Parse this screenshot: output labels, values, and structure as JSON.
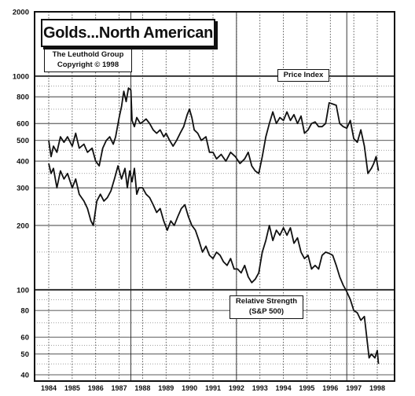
{
  "chart_data": {
    "type": "line",
    "title": "Golds...North American",
    "source_lines": [
      "The Leuthold Group",
      "Copyright © 1998"
    ],
    "y_scale": "log",
    "ylim": [
      40,
      2000
    ],
    "y_ticks": [
      2000,
      1000,
      800,
      600,
      500,
      400,
      300,
      200,
      100,
      80,
      60,
      50,
      40
    ],
    "xlim": [
      1984,
      1998
    ],
    "x_ticks": [
      1984,
      1985,
      1986,
      1987,
      1988,
      1989,
      1990,
      1991,
      1992,
      1993,
      1994,
      1995,
      1996,
      1997,
      1998
    ],
    "grid": true,
    "series": [
      {
        "name": "Price Index",
        "label_lines": [
          "Price Index"
        ],
        "points": [
          [
            1984.0,
            500
          ],
          [
            1984.1,
            420
          ],
          [
            1984.2,
            470
          ],
          [
            1984.35,
            440
          ],
          [
            1984.5,
            520
          ],
          [
            1984.65,
            490
          ],
          [
            1984.8,
            520
          ],
          [
            1985.0,
            470
          ],
          [
            1985.15,
            540
          ],
          [
            1985.3,
            460
          ],
          [
            1985.5,
            480
          ],
          [
            1985.65,
            440
          ],
          [
            1985.85,
            460
          ],
          [
            1986.0,
            400
          ],
          [
            1986.15,
            380
          ],
          [
            1986.3,
            460
          ],
          [
            1986.45,
            500
          ],
          [
            1986.6,
            520
          ],
          [
            1986.75,
            480
          ],
          [
            1986.85,
            520
          ],
          [
            1987.0,
            640
          ],
          [
            1987.1,
            720
          ],
          [
            1987.2,
            850
          ],
          [
            1987.3,
            760
          ],
          [
            1987.4,
            880
          ],
          [
            1987.5,
            860
          ],
          [
            1987.55,
            620
          ],
          [
            1987.65,
            580
          ],
          [
            1987.75,
            640
          ],
          [
            1987.9,
            600
          ],
          [
            1988.0,
            610
          ],
          [
            1988.15,
            630
          ],
          [
            1988.3,
            600
          ],
          [
            1988.45,
            560
          ],
          [
            1988.6,
            540
          ],
          [
            1988.75,
            560
          ],
          [
            1988.9,
            520
          ],
          [
            1989.0,
            540
          ],
          [
            1989.15,
            500
          ],
          [
            1989.3,
            470
          ],
          [
            1989.45,
            500
          ],
          [
            1989.6,
            540
          ],
          [
            1989.75,
            580
          ],
          [
            1989.9,
            660
          ],
          [
            1990.0,
            700
          ],
          [
            1990.1,
            640
          ],
          [
            1990.2,
            560
          ],
          [
            1990.35,
            540
          ],
          [
            1990.5,
            500
          ],
          [
            1990.7,
            520
          ],
          [
            1990.85,
            440
          ],
          [
            1991.0,
            440
          ],
          [
            1991.15,
            410
          ],
          [
            1991.35,
            430
          ],
          [
            1991.55,
            400
          ],
          [
            1991.75,
            440
          ],
          [
            1991.95,
            420
          ],
          [
            1992.15,
            390
          ],
          [
            1992.35,
            410
          ],
          [
            1992.5,
            440
          ],
          [
            1992.65,
            380
          ],
          [
            1992.8,
            360
          ],
          [
            1992.95,
            350
          ],
          [
            1993.1,
            420
          ],
          [
            1993.25,
            520
          ],
          [
            1993.4,
            600
          ],
          [
            1993.55,
            680
          ],
          [
            1993.7,
            600
          ],
          [
            1993.85,
            640
          ],
          [
            1994.0,
            620
          ],
          [
            1994.15,
            680
          ],
          [
            1994.3,
            620
          ],
          [
            1994.45,
            660
          ],
          [
            1994.6,
            600
          ],
          [
            1994.75,
            650
          ],
          [
            1994.9,
            540
          ],
          [
            1995.05,
            560
          ],
          [
            1995.2,
            600
          ],
          [
            1995.35,
            610
          ],
          [
            1995.5,
            580
          ],
          [
            1995.65,
            580
          ],
          [
            1995.8,
            600
          ],
          [
            1995.95,
            750
          ],
          [
            1996.1,
            740
          ],
          [
            1996.25,
            730
          ],
          [
            1996.4,
            600
          ],
          [
            1996.55,
            580
          ],
          [
            1996.7,
            570
          ],
          [
            1996.85,
            620
          ],
          [
            1997.0,
            510
          ],
          [
            1997.15,
            490
          ],
          [
            1997.3,
            560
          ],
          [
            1997.45,
            470
          ],
          [
            1997.6,
            350
          ],
          [
            1997.75,
            370
          ],
          [
            1997.85,
            390
          ],
          [
            1997.95,
            420
          ],
          [
            1998.05,
            360
          ]
        ]
      },
      {
        "name": "Relative Strength (S&P 500)",
        "label_lines": [
          "Relative Strength",
          "(S&P 500)"
        ],
        "points": [
          [
            1984.0,
            390
          ],
          [
            1984.1,
            350
          ],
          [
            1984.2,
            370
          ],
          [
            1984.35,
            300
          ],
          [
            1984.5,
            360
          ],
          [
            1984.65,
            330
          ],
          [
            1984.8,
            350
          ],
          [
            1985.0,
            300
          ],
          [
            1985.15,
            330
          ],
          [
            1985.3,
            280
          ],
          [
            1985.5,
            260
          ],
          [
            1985.65,
            240
          ],
          [
            1985.8,
            210
          ],
          [
            1985.9,
            200
          ],
          [
            1986.05,
            260
          ],
          [
            1986.2,
            280
          ],
          [
            1986.35,
            260
          ],
          [
            1986.5,
            270
          ],
          [
            1986.65,
            290
          ],
          [
            1986.8,
            330
          ],
          [
            1986.95,
            380
          ],
          [
            1987.1,
            330
          ],
          [
            1987.25,
            370
          ],
          [
            1987.35,
            300
          ],
          [
            1987.45,
            360
          ],
          [
            1987.55,
            320
          ],
          [
            1987.65,
            370
          ],
          [
            1987.75,
            280
          ],
          [
            1987.85,
            300
          ],
          [
            1988.0,
            300
          ],
          [
            1988.15,
            280
          ],
          [
            1988.3,
            270
          ],
          [
            1988.45,
            250
          ],
          [
            1988.6,
            230
          ],
          [
            1988.75,
            240
          ],
          [
            1988.9,
            210
          ],
          [
            1989.05,
            190
          ],
          [
            1989.2,
            210
          ],
          [
            1989.35,
            200
          ],
          [
            1989.5,
            220
          ],
          [
            1989.65,
            240
          ],
          [
            1989.8,
            250
          ],
          [
            1989.95,
            220
          ],
          [
            1990.1,
            200
          ],
          [
            1990.25,
            190
          ],
          [
            1990.4,
            170
          ],
          [
            1990.55,
            150
          ],
          [
            1990.7,
            160
          ],
          [
            1990.85,
            145
          ],
          [
            1991.0,
            140
          ],
          [
            1991.15,
            150
          ],
          [
            1991.3,
            145
          ],
          [
            1991.45,
            135
          ],
          [
            1991.6,
            130
          ],
          [
            1991.75,
            140
          ],
          [
            1991.9,
            125
          ],
          [
            1992.05,
            125
          ],
          [
            1992.2,
            120
          ],
          [
            1992.35,
            130
          ],
          [
            1992.5,
            115
          ],
          [
            1992.65,
            108
          ],
          [
            1992.8,
            112
          ],
          [
            1992.95,
            120
          ],
          [
            1993.1,
            150
          ],
          [
            1993.25,
            170
          ],
          [
            1993.4,
            200
          ],
          [
            1993.55,
            170
          ],
          [
            1993.7,
            190
          ],
          [
            1993.85,
            180
          ],
          [
            1994.0,
            195
          ],
          [
            1994.15,
            180
          ],
          [
            1994.3,
            195
          ],
          [
            1994.45,
            165
          ],
          [
            1994.6,
            175
          ],
          [
            1994.75,
            150
          ],
          [
            1994.9,
            140
          ],
          [
            1995.05,
            145
          ],
          [
            1995.2,
            125
          ],
          [
            1995.35,
            130
          ],
          [
            1995.5,
            125
          ],
          [
            1995.65,
            145
          ],
          [
            1995.8,
            150
          ],
          [
            1995.95,
            148
          ],
          [
            1996.1,
            145
          ],
          [
            1996.25,
            130
          ],
          [
            1996.4,
            115
          ],
          [
            1996.55,
            105
          ],
          [
            1996.7,
            98
          ],
          [
            1996.85,
            90
          ],
          [
            1997.0,
            80
          ],
          [
            1997.15,
            78
          ],
          [
            1997.3,
            72
          ],
          [
            1997.45,
            75
          ],
          [
            1997.55,
            60
          ],
          [
            1997.65,
            48
          ],
          [
            1997.75,
            50
          ],
          [
            1997.9,
            48
          ],
          [
            1998.0,
            52
          ],
          [
            1998.05,
            45
          ]
        ]
      }
    ]
  }
}
